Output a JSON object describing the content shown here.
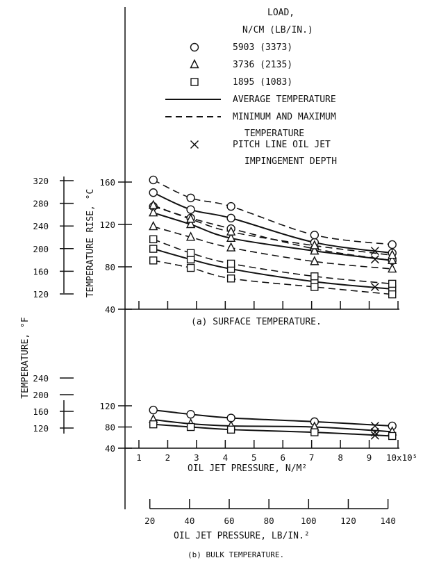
{
  "chart_data": [
    {
      "type": "scatter",
      "title": "(a) SURFACE TEMPERATURE.",
      "xlabel": "OIL JET PRESSURE, N/M²",
      "ylabel": "TEMPERATURE RISE, °C",
      "ylabel_secondary": "TEMPERATURE, °F",
      "xlim": [
        1,
        10
      ],
      "ylim": [
        40,
        160
      ],
      "y_ticks": [
        "40",
        "80",
        "120",
        "160"
      ],
      "y_ticks_secondary": [
        "120",
        "160",
        "200",
        "240",
        "280",
        "320"
      ],
      "legend": {
        "title_line1": "LOAD,",
        "title_line2": "N/CM (LB/IN.)",
        "entries": [
          {
            "marker": "circle",
            "label": "5903 (3373)"
          },
          {
            "marker": "triangle",
            "label": "3736 (2135)"
          },
          {
            "marker": "square",
            "label": "1895 (1083)"
          },
          {
            "marker": "solid-line",
            "label": "AVERAGE TEMPERATURE"
          },
          {
            "marker": "dashed-line",
            "label": "MINIMUM AND MAXIMUM",
            "label2": "TEMPERATURE"
          },
          {
            "marker": "cross",
            "label": "PITCH LINE OIL JET",
            "label2": "IMPINGEMENT DEPTH"
          }
        ]
      },
      "series": [
        {
          "load": "5903 (3373)",
          "marker": "circle",
          "avg": [
            [
              1.5,
              150
            ],
            [
              2.8,
              134
            ],
            [
              4.2,
              126
            ],
            [
              7.1,
              103
            ],
            [
              9.8,
              93
            ]
          ],
          "max": [
            [
              1.5,
              162
            ],
            [
              2.8,
              145
            ],
            [
              4.2,
              137
            ],
            [
              7.1,
              110
            ],
            [
              9.8,
              101
            ]
          ],
          "min": [
            [
              1.5,
              137
            ],
            [
              2.8,
              126
            ],
            [
              4.2,
              116
            ],
            [
              7.1,
              97
            ],
            [
              9.8,
              86
            ]
          ]
        },
        {
          "load": "3736 (2135)",
          "marker": "triangle",
          "avg": [
            [
              1.5,
              131
            ],
            [
              2.8,
              120
            ],
            [
              4.2,
              107
            ],
            [
              7.1,
              95
            ],
            [
              9.8,
              86
            ]
          ],
          "max": [
            [
              1.5,
              138
            ],
            [
              2.8,
              125
            ],
            [
              4.2,
              113
            ],
            [
              7.1,
              100
            ],
            [
              9.8,
              91
            ]
          ],
          "min": [
            [
              1.5,
              118
            ],
            [
              2.8,
              108
            ],
            [
              4.2,
              98
            ],
            [
              7.1,
              85
            ],
            [
              9.8,
              78
            ]
          ]
        },
        {
          "load": "1895 (1083)",
          "marker": "square",
          "avg": [
            [
              1.5,
              97
            ],
            [
              2.8,
              87
            ],
            [
              4.2,
              78
            ],
            [
              7.1,
              66
            ],
            [
              9.8,
              59
            ]
          ],
          "max": [
            [
              1.5,
              106
            ],
            [
              2.8,
              93
            ],
            [
              4.2,
              83
            ],
            [
              7.1,
              71
            ],
            [
              9.8,
              64
            ]
          ],
          "min": [
            [
              1.5,
              86
            ],
            [
              2.8,
              79
            ],
            [
              4.2,
              69
            ],
            [
              7.1,
              61
            ],
            [
              9.8,
              54
            ]
          ]
        }
      ],
      "pitch_line_points": [
        [
          9.2,
          95
        ],
        [
          9.2,
          87
        ],
        [
          9.2,
          61
        ]
      ]
    },
    {
      "type": "scatter",
      "title": "(b) BULK TEMPERATURE.",
      "xlabel": "OIL JET PRESSURE, N/M²",
      "xlabel_secondary": "OIL JET PRESSURE, LB/IN.²",
      "x_exponent_label": "10x10⁵",
      "xlim": [
        1,
        10
      ],
      "ylim": [
        40,
        120
      ],
      "x_ticks": [
        "1",
        "2",
        "3",
        "4",
        "5",
        "6",
        "7",
        "8",
        "9"
      ],
      "x_ticks_secondary": [
        "20",
        "40",
        "60",
        "80",
        "100",
        "120",
        "140"
      ],
      "y_ticks": [
        "40",
        "80",
        "120"
      ],
      "y_ticks_secondary": [
        "120",
        "160",
        "200",
        "240"
      ],
      "series": [
        {
          "load": "5903 (3373)",
          "marker": "circle",
          "points": [
            [
              1.5,
              112
            ],
            [
              2.8,
              104
            ],
            [
              4.2,
              97
            ],
            [
              7.1,
              90
            ],
            [
              9.8,
              82
            ]
          ]
        },
        {
          "load": "3736 (2135)",
          "marker": "triangle",
          "points": [
            [
              1.5,
              94
            ],
            [
              2.8,
              86
            ],
            [
              4.2,
              82
            ],
            [
              7.1,
              80
            ],
            [
              9.8,
              71
            ]
          ]
        },
        {
          "load": "1895 (1083)",
          "marker": "square",
          "points": [
            [
              1.5,
              85
            ],
            [
              2.8,
              80
            ],
            [
              4.2,
              75
            ],
            [
              7.1,
              70
            ],
            [
              9.8,
              63
            ]
          ]
        }
      ],
      "pitch_line_points": [
        [
          9.2,
          82
        ],
        [
          9.2,
          70
        ],
        [
          9.2,
          64
        ]
      ]
    }
  ]
}
